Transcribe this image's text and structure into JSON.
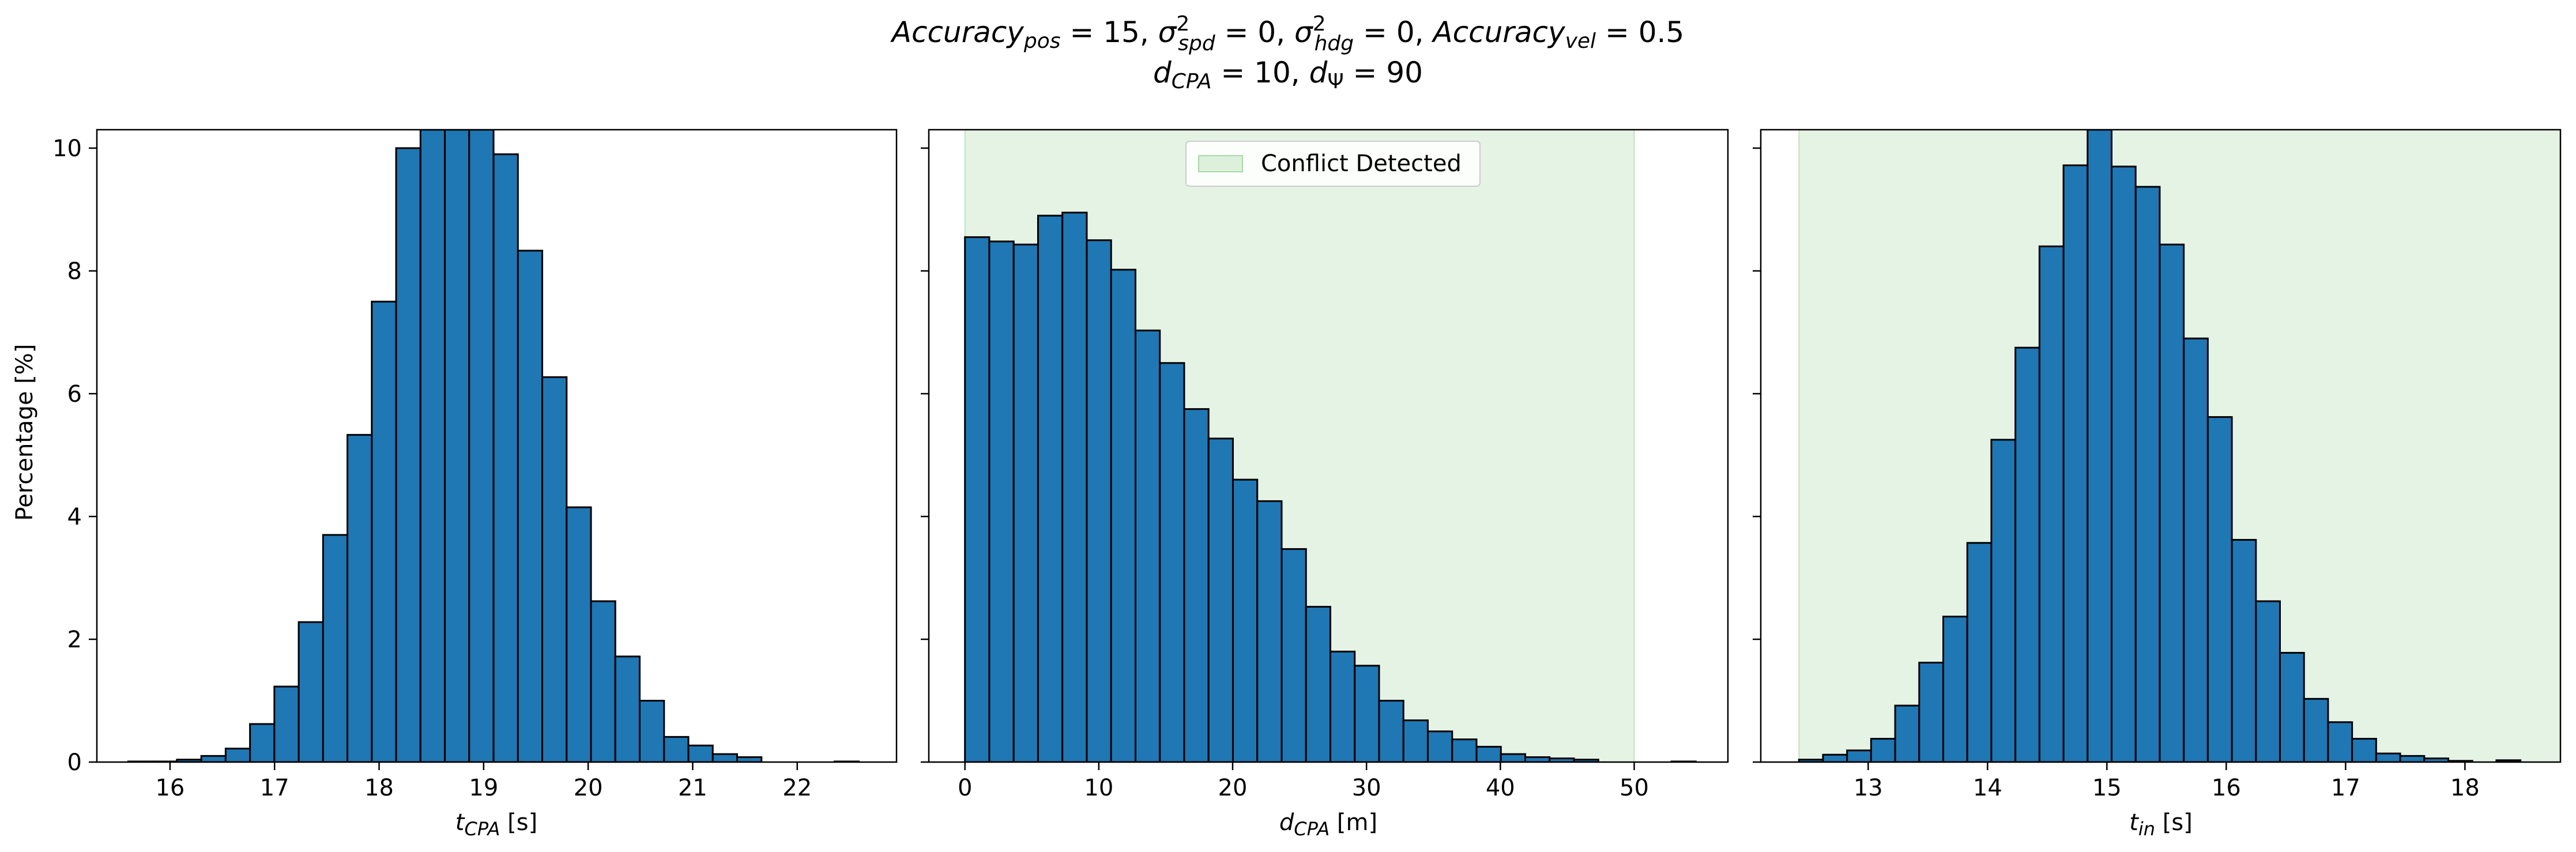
{
  "figure": {
    "title_line1": "Accuracy_pos = 15, σ²_spd = 0, σ²_hdg = 0, Accuracy_vel = 0.5",
    "title_line2": "d_CPA = 10, d_Ψ = 90",
    "ylabel": "Percentage [%]"
  },
  "colors": {
    "bar": "#1f77b4",
    "edge": "#000000",
    "conflict": "#2ca02c"
  },
  "chart_data": [
    {
      "type": "bar",
      "xlabel": "t_CPA [s]",
      "xlim": [
        15.3,
        22.95
      ],
      "ylim": [
        0,
        10.3
      ],
      "xticks": [
        16,
        17,
        18,
        19,
        20,
        21,
        22
      ],
      "yticks": [
        0,
        2,
        4,
        6,
        8,
        10
      ],
      "bin_start": 15.6,
      "bin_width": 0.233,
      "values": [
        0.01,
        0.01,
        0.04,
        0.1,
        0.22,
        0.62,
        1.23,
        2.28,
        3.7,
        5.33,
        7.5,
        10.0,
        10.3,
        10.3,
        10.3,
        9.9,
        8.33,
        6.27,
        4.15,
        2.62,
        1.72,
        1.0,
        0.41,
        0.27,
        0.13,
        0.08,
        0.0,
        0.0,
        0.0,
        0.01
      ],
      "conflict_range": null,
      "legend": null
    },
    {
      "type": "bar",
      "xlabel": "d_CPA [m]",
      "xlim": [
        -2.7,
        57.0
      ],
      "ylim": [
        0,
        10.3
      ],
      "xticks": [
        0,
        10,
        20,
        30,
        40,
        50
      ],
      "yticks": [
        0,
        2,
        4,
        6,
        8,
        10
      ],
      "bin_start": 0.0,
      "bin_width": 1.82,
      "values": [
        8.55,
        8.48,
        8.43,
        8.9,
        8.95,
        8.5,
        8.02,
        7.03,
        6.5,
        5.75,
        5.27,
        4.6,
        4.25,
        3.47,
        2.53,
        1.8,
        1.57,
        1.0,
        0.68,
        0.5,
        0.37,
        0.25,
        0.13,
        0.08,
        0.06,
        0.04,
        0.0,
        0.0,
        0.0,
        0.01
      ],
      "conflict_range": [
        0,
        50
      ],
      "legend": "Conflict Detected"
    },
    {
      "type": "bar",
      "xlabel": "t_in [s]",
      "xlim": [
        12.1,
        18.8
      ],
      "ylim": [
        0,
        10.3
      ],
      "xticks": [
        13,
        14,
        15,
        16,
        17,
        18
      ],
      "yticks": [
        0,
        2,
        4,
        6,
        8,
        10
      ],
      "bin_start": 12.42,
      "bin_width": 0.2015,
      "values": [
        0.04,
        0.12,
        0.19,
        0.38,
        0.92,
        1.62,
        2.37,
        3.57,
        5.25,
        6.75,
        8.4,
        9.72,
        10.3,
        9.7,
        9.37,
        8.43,
        6.9,
        5.62,
        3.62,
        2.62,
        1.78,
        1.03,
        0.65,
        0.38,
        0.14,
        0.1,
        0.06,
        0.02,
        0.0,
        0.03
      ],
      "conflict_range": [
        12.42,
        18.8
      ],
      "legend": null
    }
  ]
}
